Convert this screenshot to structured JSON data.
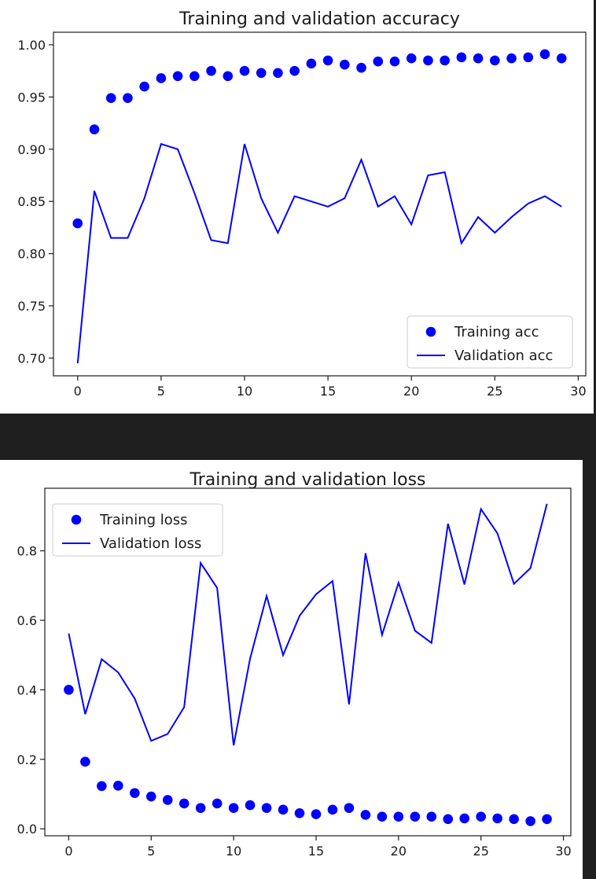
{
  "chart_data": [
    {
      "type": "line",
      "title": "Training and validation accuracy",
      "xlabel": "",
      "ylabel": "",
      "xlim": [
        -1.45,
        30.45
      ],
      "ylim": [
        0.683,
        1.012
      ],
      "xticks": [
        0,
        5,
        10,
        15,
        20,
        25,
        30
      ],
      "yticks": [
        0.7,
        0.75,
        0.8,
        0.85,
        0.9,
        0.95,
        1.0
      ],
      "ytick_labels": [
        "0.70",
        "0.75",
        "0.80",
        "0.85",
        "0.90",
        "0.95",
        "1.00"
      ],
      "legend": "lower-right",
      "grid": false,
      "x": [
        0,
        1,
        2,
        3,
        4,
        5,
        6,
        7,
        8,
        9,
        10,
        11,
        12,
        13,
        14,
        15,
        16,
        17,
        18,
        19,
        20,
        21,
        22,
        23,
        24,
        25,
        26,
        27,
        28,
        29
      ],
      "series": [
        {
          "name": "Training acc",
          "style": "dots",
          "color": "#0000ff",
          "values": [
            0.829,
            0.919,
            0.949,
            0.949,
            0.96,
            0.968,
            0.97,
            0.97,
            0.975,
            0.97,
            0.975,
            0.973,
            0.973,
            0.975,
            0.982,
            0.985,
            0.981,
            0.978,
            0.984,
            0.984,
            0.987,
            0.985,
            0.985,
            0.988,
            0.987,
            0.985,
            0.987,
            0.988,
            0.991,
            0.987
          ]
        },
        {
          "name": "Validation acc",
          "style": "line",
          "color": "#0000ff",
          "values": [
            0.695,
            0.86,
            0.815,
            0.815,
            0.853,
            0.905,
            0.9,
            0.858,
            0.813,
            0.81,
            0.905,
            0.853,
            0.82,
            0.855,
            0.85,
            0.845,
            0.853,
            0.89,
            0.845,
            0.855,
            0.828,
            0.875,
            0.878,
            0.81,
            0.835,
            0.82,
            0.835,
            0.848,
            0.855,
            0.845
          ]
        }
      ]
    },
    {
      "type": "line",
      "title": "Training and validation loss",
      "xlabel": "",
      "ylabel": "",
      "xlim": [
        -1.45,
        30.45
      ],
      "ylim": [
        -0.02,
        0.98
      ],
      "xticks": [
        0,
        5,
        10,
        15,
        20,
        25,
        30
      ],
      "yticks": [
        0.0,
        0.2,
        0.4,
        0.6,
        0.8
      ],
      "ytick_labels": [
        "0.0",
        "0.2",
        "0.4",
        "0.6",
        "0.8"
      ],
      "legend": "upper-left",
      "grid": false,
      "x": [
        0,
        1,
        2,
        3,
        4,
        5,
        6,
        7,
        8,
        9,
        10,
        11,
        12,
        13,
        14,
        15,
        16,
        17,
        18,
        19,
        20,
        21,
        22,
        23,
        24,
        25,
        26,
        27,
        28,
        29
      ],
      "series": [
        {
          "name": "Training loss",
          "style": "dots",
          "color": "#0000ff",
          "values": [
            0.4,
            0.193,
            0.123,
            0.124,
            0.103,
            0.093,
            0.083,
            0.073,
            0.06,
            0.073,
            0.06,
            0.068,
            0.06,
            0.055,
            0.045,
            0.042,
            0.055,
            0.06,
            0.04,
            0.035,
            0.035,
            0.035,
            0.035,
            0.028,
            0.03,
            0.035,
            0.03,
            0.028,
            0.022,
            0.028
          ]
        },
        {
          "name": "Validation loss",
          "style": "line",
          "color": "#0000ff",
          "values": [
            0.562,
            0.33,
            0.488,
            0.45,
            0.375,
            0.253,
            0.273,
            0.35,
            0.765,
            0.693,
            0.24,
            0.49,
            0.67,
            0.5,
            0.613,
            0.675,
            0.713,
            0.358,
            0.793,
            0.558,
            0.708,
            0.57,
            0.535,
            0.878,
            0.703,
            0.92,
            0.85,
            0.705,
            0.75,
            0.935
          ]
        }
      ]
    }
  ]
}
